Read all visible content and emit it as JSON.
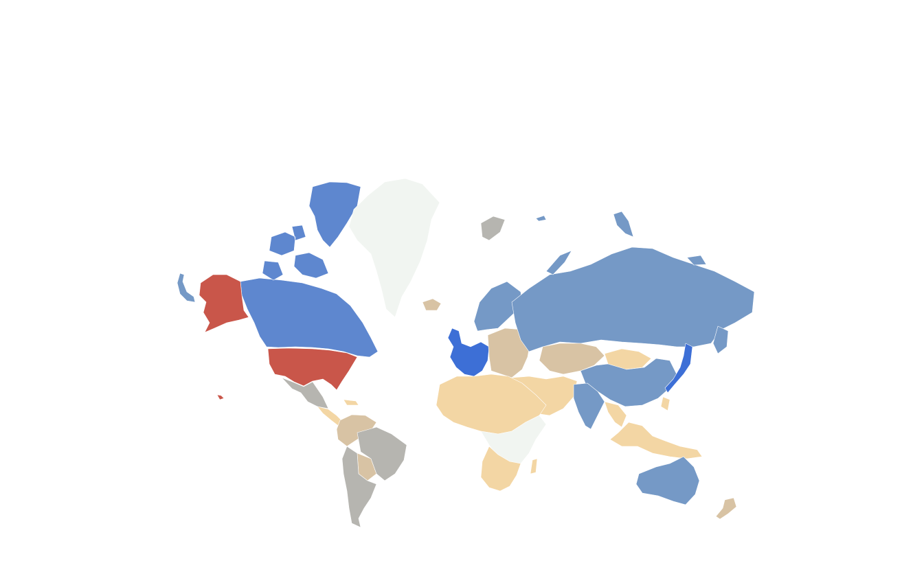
{
  "map": {
    "type": "choropleth-world",
    "legend": null,
    "palette": {
      "red": "#c9564a",
      "blue": "#5e87cf",
      "bright_blue": "#3d6fd6",
      "steel_blue": "#7599c6",
      "gray": "#b6b5b0",
      "tan": "#d8c3a4",
      "light_tan": "#f3d6a4",
      "pale": "#f1f5f1"
    },
    "regions": [
      {
        "name": "alaska",
        "color": "red"
      },
      {
        "name": "usa-mainland",
        "color": "red"
      },
      {
        "name": "hawaii",
        "color": "red"
      },
      {
        "name": "canada",
        "color": "blue"
      },
      {
        "name": "canada-arctic-islands",
        "color": "blue"
      },
      {
        "name": "greenland",
        "color": "pale"
      },
      {
        "name": "iceland",
        "color": "tan"
      },
      {
        "name": "mexico",
        "color": "gray"
      },
      {
        "name": "central-america",
        "color": "light_tan"
      },
      {
        "name": "south-america-north",
        "color": "tan"
      },
      {
        "name": "brazil",
        "color": "gray"
      },
      {
        "name": "south-america-south",
        "color": "gray"
      },
      {
        "name": "western-europe",
        "color": "bright_blue"
      },
      {
        "name": "scandinavia",
        "color": "steel_blue"
      },
      {
        "name": "eastern-europe",
        "color": "tan"
      },
      {
        "name": "russia",
        "color": "steel_blue"
      },
      {
        "name": "svalbard",
        "color": "gray"
      },
      {
        "name": "central-asia",
        "color": "tan"
      },
      {
        "name": "mongolia",
        "color": "light_tan"
      },
      {
        "name": "china",
        "color": "steel_blue"
      },
      {
        "name": "india",
        "color": "steel_blue"
      },
      {
        "name": "middle-east",
        "color": "light_tan"
      },
      {
        "name": "japan",
        "color": "bright_blue"
      },
      {
        "name": "southeast-asia",
        "color": "light_tan"
      },
      {
        "name": "north-africa",
        "color": "light_tan"
      },
      {
        "name": "central-africa",
        "color": "pale"
      },
      {
        "name": "southern-africa",
        "color": "light_tan"
      },
      {
        "name": "australia",
        "color": "steel_blue"
      },
      {
        "name": "new-zealand",
        "color": "tan"
      }
    ]
  }
}
